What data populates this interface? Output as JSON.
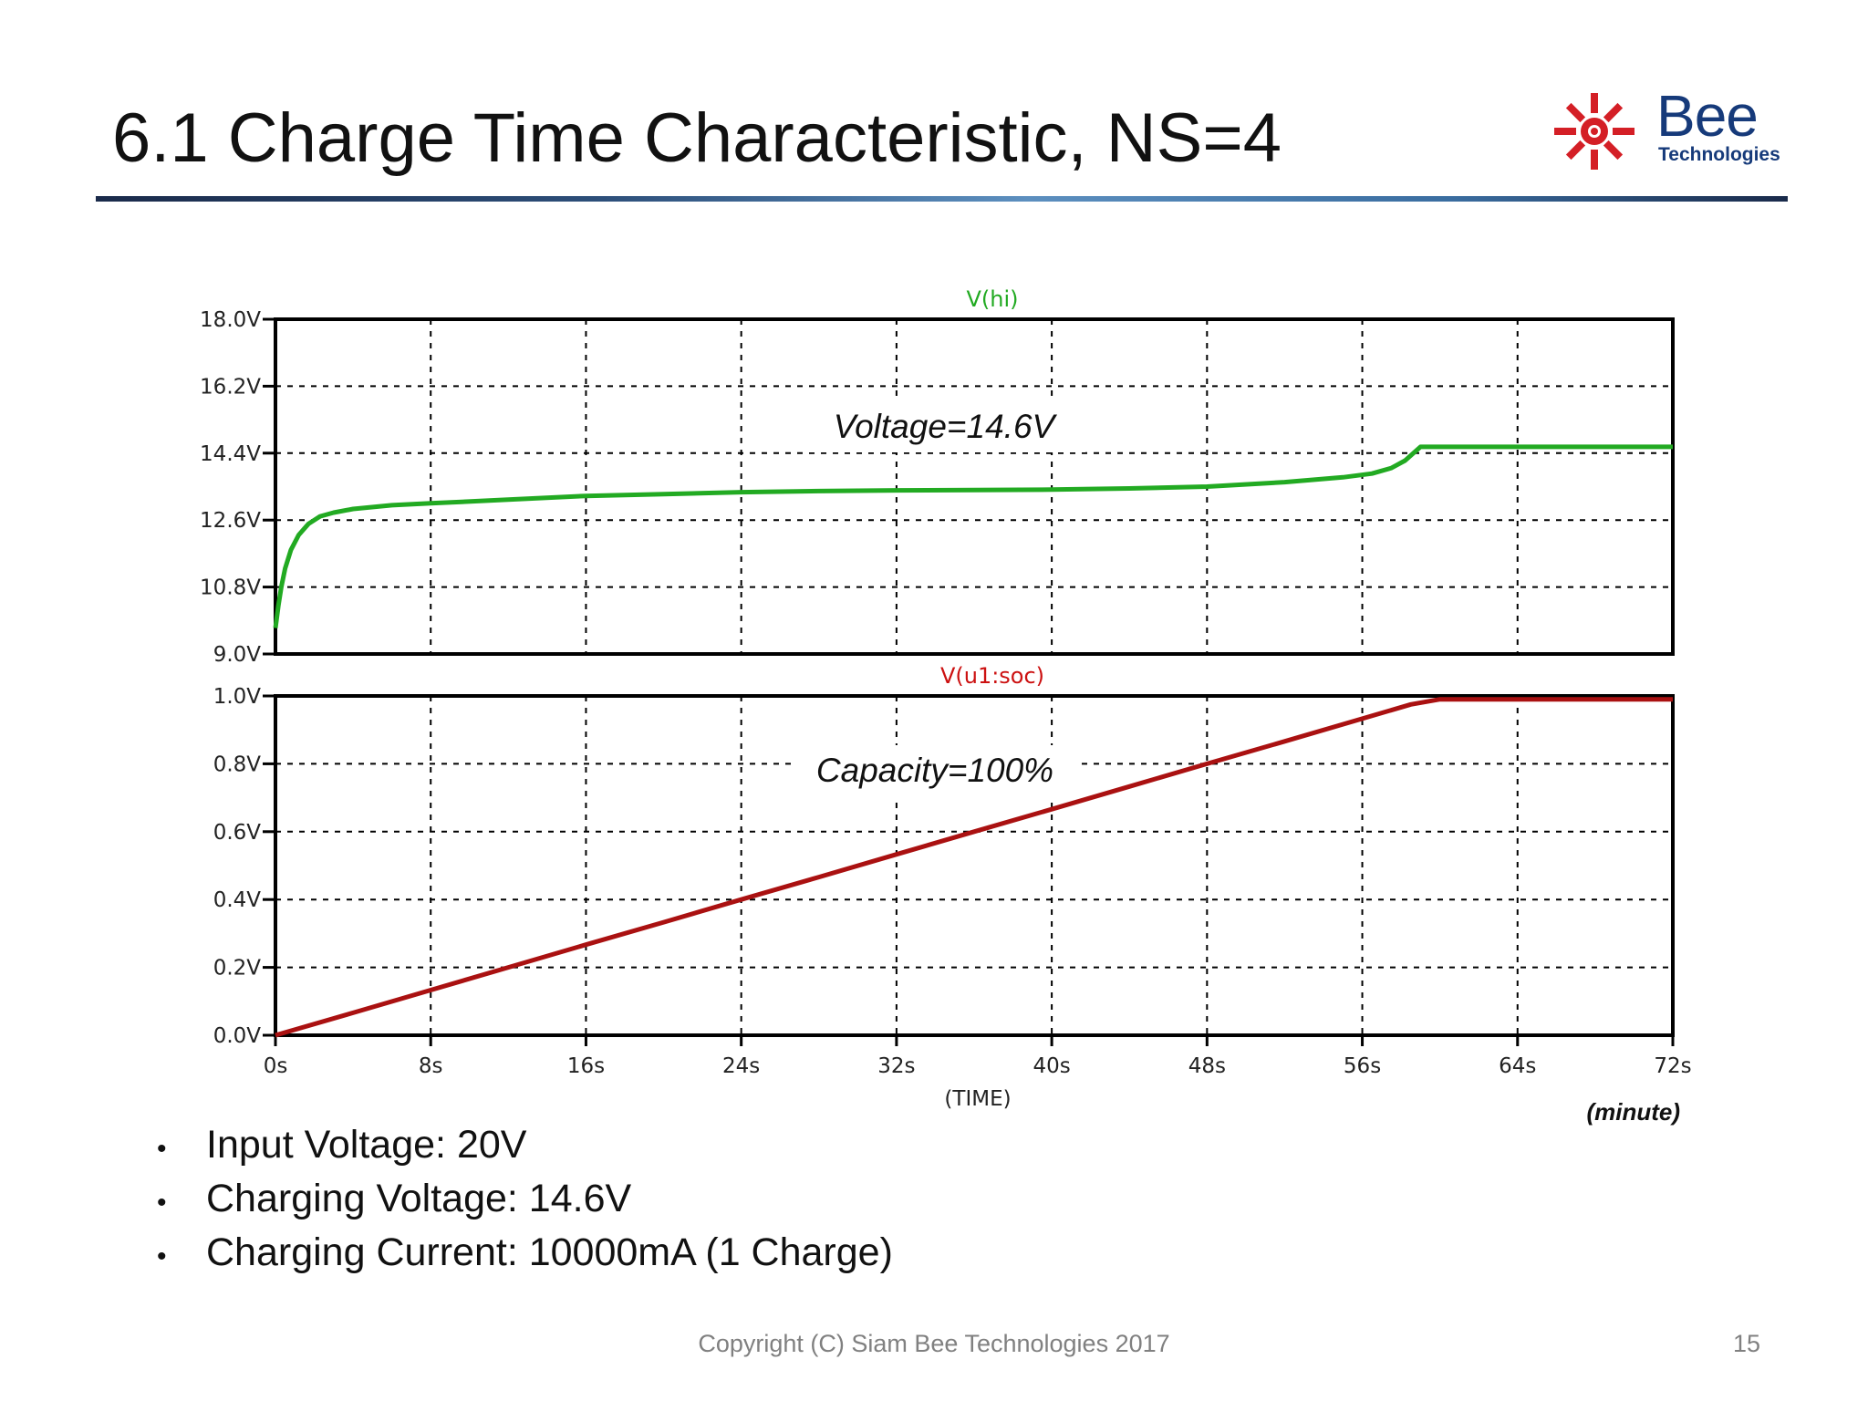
{
  "slide": {
    "title": "6.1 Charge Time Characteristic, NS=4",
    "logo": {
      "word": "Bee",
      "sub": "Technologies"
    },
    "bullets": [
      "Input Voltage: 20V",
      "Charging Voltage: 14.6V",
      "Charging Current: 10000mA (1 Charge)"
    ],
    "copyright": "Copyright (C) Siam Bee Technologies 2017",
    "page_number": "15"
  },
  "chart_data": [
    {
      "type": "line",
      "title": "V(hi)",
      "xlabel": "",
      "ylabel": "",
      "xlim": [
        0,
        72
      ],
      "ylim": [
        9.0,
        18.0
      ],
      "x_ticks": [
        "0s",
        "8s",
        "16s",
        "24s",
        "32s",
        "40s",
        "48s",
        "56s",
        "64s",
        "72s"
      ],
      "y_ticks": [
        "9.0V",
        "10.8V",
        "12.6V",
        "14.4V",
        "16.2V",
        "18.0V"
      ],
      "grid": true,
      "color": "#22aa22",
      "annotation": "Voltage=14.6V",
      "series": [
        {
          "name": "V(hi)",
          "x": [
            0,
            0.15,
            0.3,
            0.5,
            0.8,
            1.2,
            1.7,
            2.3,
            3,
            4,
            6,
            8,
            12,
            16,
            20,
            24,
            28,
            32,
            36,
            40,
            44,
            48,
            52,
            55,
            56.5,
            57.5,
            58.2,
            59,
            64,
            72
          ],
          "y": [
            9.7,
            10.3,
            10.8,
            11.3,
            11.8,
            12.2,
            12.5,
            12.7,
            12.8,
            12.9,
            13.0,
            13.05,
            13.15,
            13.25,
            13.3,
            13.35,
            13.38,
            13.4,
            13.41,
            13.42,
            13.45,
            13.5,
            13.62,
            13.75,
            13.85,
            14.0,
            14.2,
            14.57,
            14.57,
            14.57
          ]
        }
      ]
    },
    {
      "type": "line",
      "title": "V(u1:soc)",
      "xlabel": "(TIME)",
      "xunit": "(minute)",
      "ylabel": "",
      "xlim": [
        0,
        72
      ],
      "ylim": [
        0.0,
        1.0
      ],
      "x_ticks": [
        "0s",
        "8s",
        "16s",
        "24s",
        "32s",
        "40s",
        "48s",
        "56s",
        "64s",
        "72s"
      ],
      "y_ticks": [
        "0.0V",
        "0.2V",
        "0.4V",
        "0.6V",
        "0.8V",
        "1.0V"
      ],
      "grid": true,
      "color": "#aa1111",
      "annotation": "Capacity=100%",
      "series": [
        {
          "name": "V(u1:soc)",
          "x": [
            0,
            4,
            8,
            12,
            16,
            20,
            24,
            28,
            32,
            36,
            40,
            44,
            48,
            52,
            56,
            58.5,
            60,
            64,
            72
          ],
          "y": [
            0.0,
            0.066,
            0.133,
            0.2,
            0.267,
            0.333,
            0.4,
            0.466,
            0.533,
            0.6,
            0.666,
            0.733,
            0.8,
            0.866,
            0.933,
            0.975,
            0.99,
            0.99,
            0.99
          ]
        }
      ]
    }
  ]
}
